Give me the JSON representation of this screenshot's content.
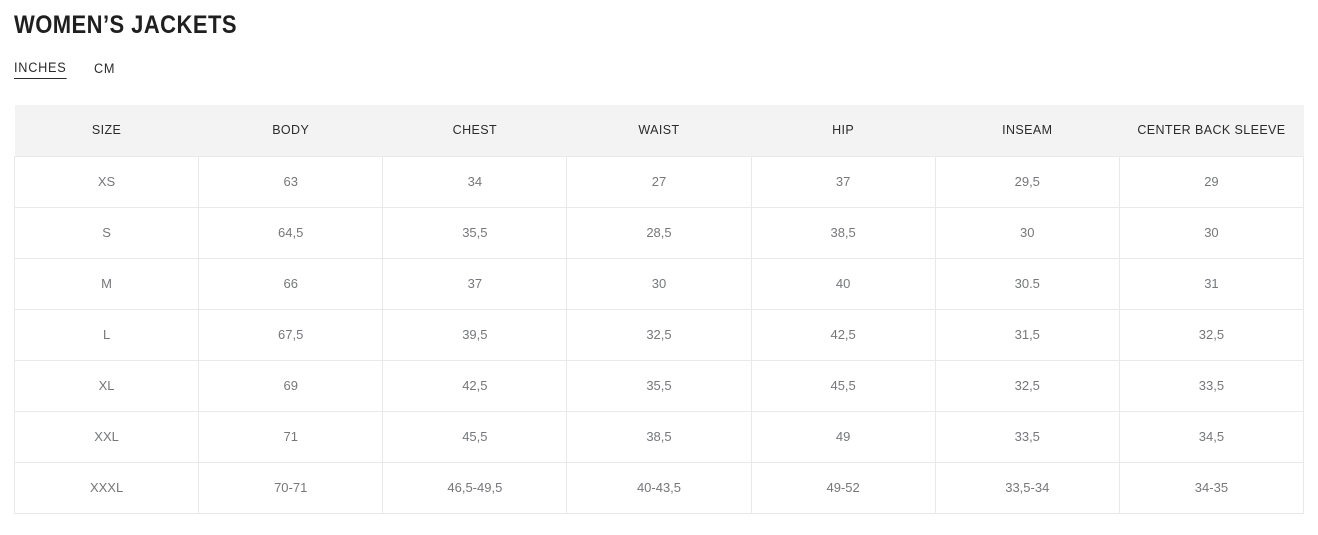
{
  "page": {
    "title": "WOMEN’S JACKETS"
  },
  "unit_toggle": {
    "inches_label": "INCHES",
    "cm_label": "CM",
    "active_unit": "INCHES"
  },
  "table": {
    "columns": [
      "SIZE",
      "BODY",
      "CHEST",
      "WAIST",
      "HIP",
      "INSEAM",
      "CENTER BACK SLEEVE"
    ],
    "rows": [
      [
        "XS",
        "63",
        "34",
        "27",
        "37",
        "29,5",
        "29"
      ],
      [
        "S",
        "64,5",
        "35,5",
        "28,5",
        "38,5",
        "30",
        "30"
      ],
      [
        "M",
        "66",
        "37",
        "30",
        "40",
        "30.5",
        "31"
      ],
      [
        "L",
        "67,5",
        "39,5",
        "32,5",
        "42,5",
        "31,5",
        "32,5"
      ],
      [
        "XL",
        "69",
        "42,5",
        "35,5",
        "45,5",
        "32,5",
        "33,5"
      ],
      [
        "XXL",
        "71",
        "45,5",
        "38,5",
        "49",
        "33,5",
        "34,5"
      ],
      [
        "XXXL",
        "70-71",
        "46,5-49,5",
        "40-43,5",
        "49-52",
        "33,5-34",
        "34-35"
      ]
    ]
  },
  "colors": {
    "header_background": "#f3f3f3",
    "cell_border": "#e9e9e9",
    "cell_text": "#76777a",
    "header_text": "#2b2b2b",
    "title_text": "#1f1f1f"
  }
}
